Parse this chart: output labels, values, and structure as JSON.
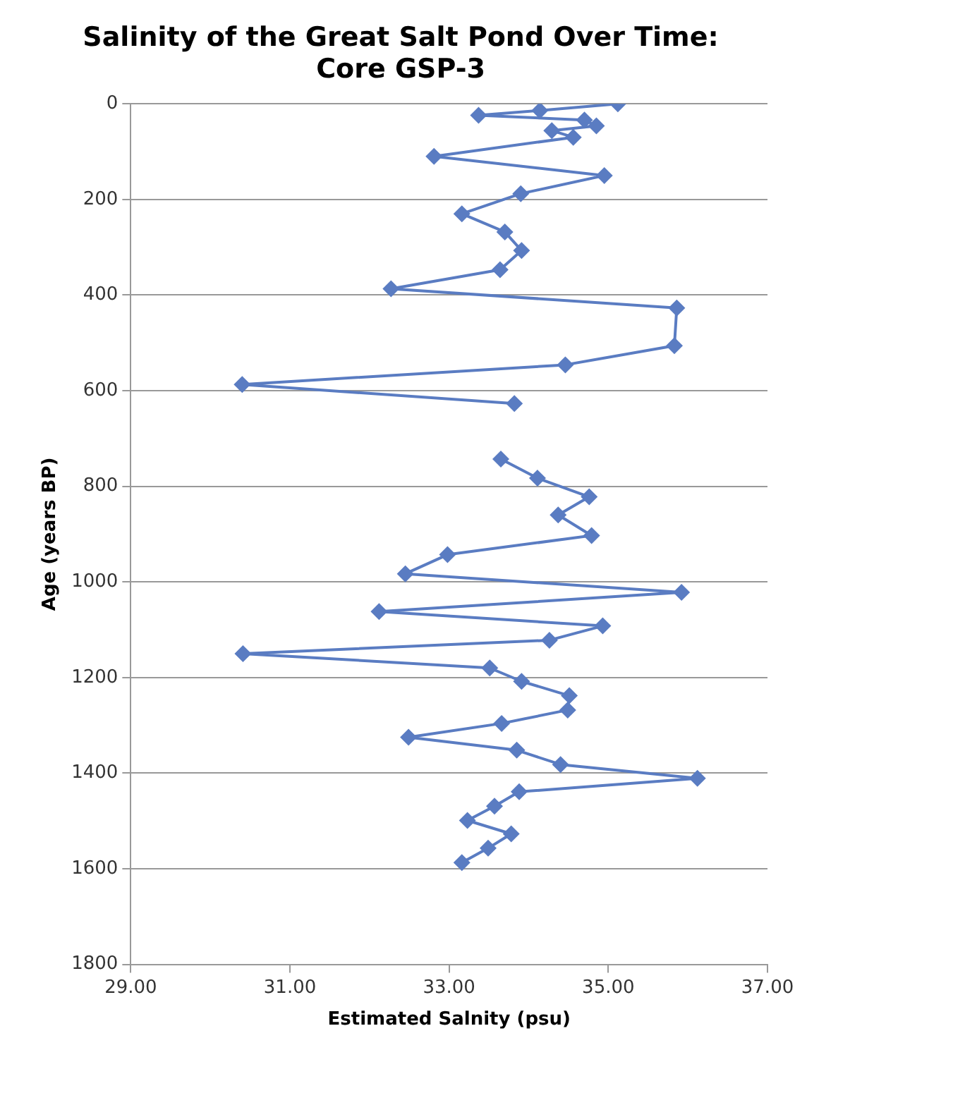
{
  "chart_data": {
    "type": "line",
    "title": "Salinity of the Great Salt Pond Over Time:\nCore GSP-3",
    "xlabel": "Estimated Salnity (psu)",
    "ylabel": "Age (years BP)",
    "xlim": [
      29,
      37
    ],
    "xticks": [
      {
        "value": 29,
        "label": "29.00"
      },
      {
        "value": 31,
        "label": "31.00"
      },
      {
        "value": 33,
        "label": "33.00"
      },
      {
        "value": 35,
        "label": "35.00"
      },
      {
        "value": 37,
        "label": "37.00"
      }
    ],
    "ylim": [
      1800,
      0
    ],
    "yticks": [
      0,
      200,
      400,
      600,
      800,
      1000,
      1200,
      1400,
      1600,
      1800
    ],
    "grid": "y",
    "marker": "diamond",
    "line_style": "solid",
    "legend": false,
    "series": [
      {
        "color": "#5a7cc2",
        "x": [
          35.12,
          34.14,
          33.37,
          34.7,
          34.85,
          34.29,
          34.56,
          32.81,
          34.95,
          33.9,
          33.16,
          33.7,
          33.91,
          33.64,
          32.27,
          35.86,
          35.83,
          34.46,
          30.4,
          33.82,
          null,
          33.65,
          34.11,
          34.76,
          34.37,
          34.79,
          32.98,
          32.45,
          35.92,
          32.12,
          34.93,
          34.26,
          30.41,
          33.51,
          33.91,
          34.51,
          34.49,
          33.66,
          32.49,
          33.85,
          34.4,
          36.12,
          33.88,
          33.57,
          33.23,
          33.78,
          33.49,
          33.16
        ],
        "values": [
          0,
          14,
          24,
          34,
          46,
          56,
          70,
          110,
          150,
          188,
          230,
          268,
          307,
          347,
          387,
          427,
          506,
          546,
          587,
          627,
          null,
          743,
          783,
          822,
          860,
          903,
          943,
          983,
          1022,
          1062,
          1092,
          1122,
          1150,
          1180,
          1208,
          1238,
          1268,
          1296,
          1325,
          1352,
          1382,
          1411,
          1439,
          1469,
          1499,
          1527,
          1557,
          1587
        ]
      }
    ]
  }
}
